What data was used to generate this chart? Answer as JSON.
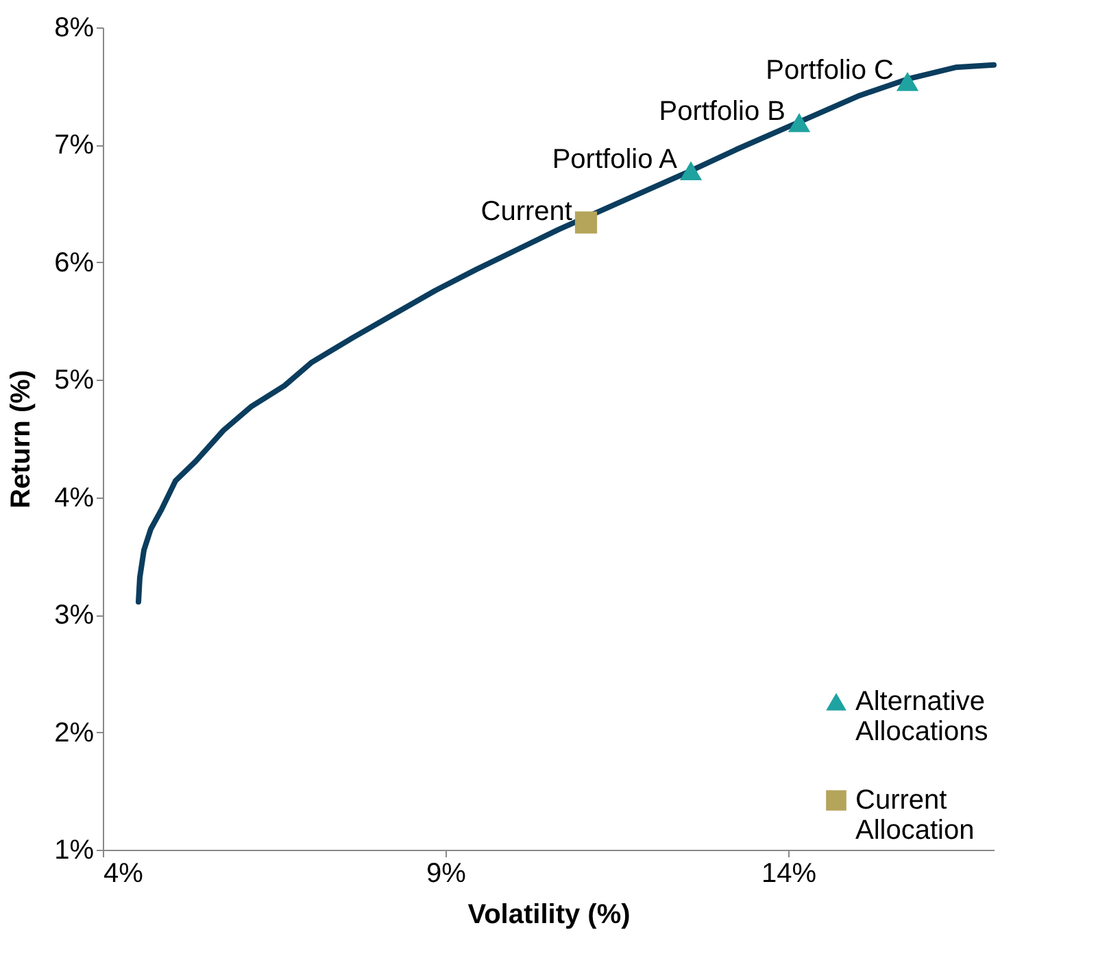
{
  "chart_data": {
    "type": "line",
    "xlabel": "Volatility (%)",
    "ylabel": "Return (%)",
    "xlim": [
      4,
      17
    ],
    "xticks": [
      {
        "value": 4,
        "label": "4%"
      },
      {
        "value": 9,
        "label": "9%"
      },
      {
        "value": 14,
        "label": "14%"
      }
    ],
    "ylim": [
      1,
      8
    ],
    "yticks": [
      {
        "value": 1,
        "label": "1%"
      },
      {
        "value": 2,
        "label": "2%"
      },
      {
        "value": 3,
        "label": "3%"
      },
      {
        "value": 4,
        "label": "4%"
      },
      {
        "value": 5,
        "label": "5%"
      },
      {
        "value": 6,
        "label": "6%"
      },
      {
        "value": 7,
        "label": "7%"
      },
      {
        "value": 8,
        "label": "8%"
      }
    ],
    "grid": false,
    "legend": "bottom right",
    "line_style": "solid",
    "series": [
      {
        "color": "#0b3d5e",
        "marker": "none",
        "x": [
          4.52,
          4.54,
          4.6,
          4.7,
          4.86,
          5.06,
          5.36,
          5.76,
          6.16,
          6.65,
          7.05,
          7.65,
          8.25,
          8.85,
          9.45,
          10.05,
          10.65,
          11.65,
          12.58,
          13.24,
          14.14,
          15.04,
          15.74,
          16.44,
          17.0
        ],
        "values": [
          3.11,
          3.32,
          3.55,
          3.73,
          3.9,
          4.14,
          4.31,
          4.57,
          4.77,
          4.95,
          5.15,
          5.36,
          5.56,
          5.76,
          5.94,
          6.11,
          6.28,
          6.54,
          6.78,
          6.96,
          7.19,
          7.42,
          7.56,
          7.66,
          7.68
        ]
      },
      {
        "type": "scatter",
        "name": "Alternative Allocations",
        "color": "#1fa3a0",
        "marker": "triangle",
        "x": [
          12.58,
          14.16,
          15.74
        ],
        "values": [
          6.78,
          7.19,
          7.54
        ]
      },
      {
        "type": "scatter",
        "name": "Current Allocation",
        "color": "#b5a55a",
        "marker": "square",
        "x": [
          11.05
        ],
        "values": [
          6.34
        ]
      }
    ],
    "annotations": [
      {
        "text": "Current",
        "x": 11.05,
        "y": 6.34
      },
      {
        "text": "Portfolio A",
        "x": 12.58,
        "y": 6.78
      },
      {
        "text": "Portfolio B",
        "x": 14.16,
        "y": 7.19
      },
      {
        "text": "Portfolio C",
        "x": 15.74,
        "y": 7.54
      }
    ]
  }
}
